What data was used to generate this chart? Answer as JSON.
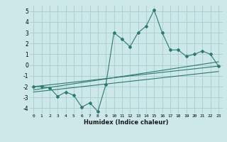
{
  "xlabel": "Humidex (Indice chaleur)",
  "xlim": [
    -0.5,
    23.5
  ],
  "ylim": [
    -4.5,
    5.5
  ],
  "yticks": [
    -4,
    -3,
    -2,
    -1,
    0,
    1,
    2,
    3,
    4,
    5
  ],
  "xticks": [
    0,
    1,
    2,
    3,
    4,
    5,
    6,
    7,
    8,
    9,
    10,
    11,
    12,
    13,
    14,
    15,
    16,
    17,
    18,
    19,
    20,
    21,
    22,
    23
  ],
  "bg_color": "#cce8e8",
  "grid_color": "#aacccc",
  "line_color": "#2d7a6e",
  "line1_x": [
    0,
    1,
    2,
    3,
    4,
    5,
    6,
    7,
    8,
    9,
    10,
    11,
    12,
    13,
    14,
    15,
    16,
    17,
    18,
    19,
    20,
    21,
    22,
    23
  ],
  "line1_y": [
    -2.0,
    -2.0,
    -2.1,
    -2.9,
    -2.5,
    -2.8,
    -3.9,
    -3.5,
    -4.3,
    -1.8,
    3.0,
    2.4,
    1.7,
    3.0,
    3.6,
    5.1,
    3.0,
    1.4,
    1.4,
    0.8,
    1.0,
    1.3,
    1.0,
    -0.1
  ],
  "line2_x": [
    0,
    23
  ],
  "line2_y": [
    -2.0,
    -0.1
  ],
  "line3_x": [
    0,
    23
  ],
  "line3_y": [
    -2.3,
    0.3
  ],
  "line4_x": [
    0,
    23
  ],
  "line4_y": [
    -2.5,
    -0.6
  ]
}
